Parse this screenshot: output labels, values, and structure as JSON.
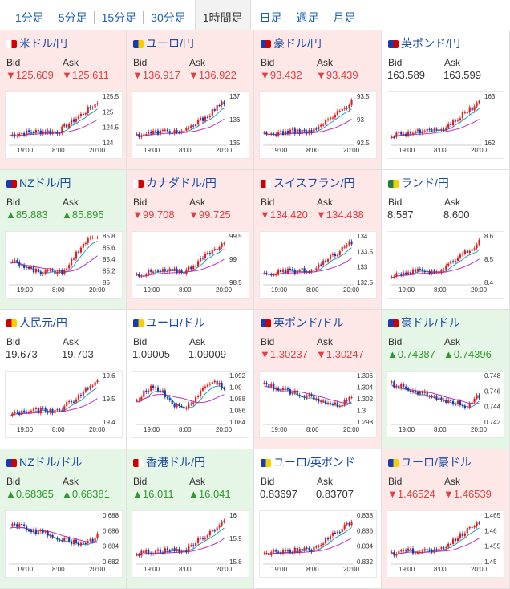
{
  "tabs": [
    "1分足",
    "5分足",
    "15分足",
    "30分足",
    "1時間足",
    "日足",
    "週足",
    "月足"
  ],
  "active_tab": "1時間足",
  "labels": {
    "bid": "Bid",
    "ask": "Ask"
  },
  "colors": {
    "down_bg": "#fde7e7",
    "up_bg": "#e6f6e6",
    "candle_up": "#e02020",
    "candle_down": "#1a3ab0",
    "ma1": "#1fa0c0",
    "ma2": "#c030c0"
  },
  "time_labels": [
    "19:00",
    "8:00",
    "20:00"
  ],
  "pairs": [
    {
      "name": "米ドル/円",
      "dir": "down",
      "bid": "▼125.609",
      "ask": "▼125.611",
      "ticks": [
        "125.5",
        "125",
        "124.5",
        "124"
      ],
      "trend": "up",
      "flag": "jp"
    },
    {
      "name": "ユーロ/円",
      "dir": "down",
      "bid": "▼136.917",
      "ask": "▼136.922",
      "ticks": [
        "137",
        "136",
        "135"
      ],
      "trend": "up",
      "flag": "eu"
    },
    {
      "name": "豪ドル/円",
      "dir": "down",
      "bid": "▼93.432",
      "ask": "▼93.439",
      "ticks": [
        "93.5",
        "93",
        "92.5"
      ],
      "trend": "up",
      "flag": "au"
    },
    {
      "name": "英ポンド/円",
      "dir": "flat",
      "bid": "163.589",
      "ask": "163.599",
      "ticks": [
        "163",
        "162"
      ],
      "trend": "up",
      "flag": "gb"
    },
    {
      "name": "NZドル/円",
      "dir": "up",
      "bid": "▲85.883",
      "ask": "▲85.895",
      "ticks": [
        "85.8",
        "85.6",
        "85.4",
        "85.2",
        "85"
      ],
      "trend": "dipup",
      "flag": "nz"
    },
    {
      "name": "カナダドル/円",
      "dir": "down",
      "bid": "▼99.708",
      "ask": "▼99.725",
      "ticks": [
        "99.5",
        "99",
        "98.5"
      ],
      "trend": "up",
      "flag": "ca"
    },
    {
      "name": "スイスフラン/円",
      "dir": "down",
      "bid": "▼134.420",
      "ask": "▼134.438",
      "ticks": [
        "134",
        "133.5",
        "133",
        "132.5"
      ],
      "trend": "up",
      "flag": "ch"
    },
    {
      "name": "ランド/円",
      "dir": "flat",
      "bid": "8.587",
      "ask": "8.600",
      "ticks": [
        "8.6",
        "8.5",
        "8.4"
      ],
      "trend": "up",
      "flag": "za"
    },
    {
      "name": "人民元/円",
      "dir": "flat",
      "bid": "19.673",
      "ask": "19.703",
      "ticks": [
        "19.6",
        "19.5",
        "19.4"
      ],
      "trend": "up",
      "flag": "cn"
    },
    {
      "name": "ユーロ/ドル",
      "dir": "flat",
      "bid": "1.09005",
      "ask": "1.09009",
      "ticks": [
        "1.092",
        "1.09",
        "1.088",
        "1.086",
        "1.084"
      ],
      "trend": "choppy",
      "flag": "eu"
    },
    {
      "name": "英ポンド/ドル",
      "dir": "down",
      "bid": "▼1.30237",
      "ask": "▼1.30247",
      "ticks": [
        "1.306",
        "1.304",
        "1.302",
        "1.3",
        "1.298"
      ],
      "trend": "down",
      "flag": "gb"
    },
    {
      "name": "豪ドル/ドル",
      "dir": "up",
      "bid": "▲0.74387",
      "ask": "▲0.74396",
      "ticks": [
        "0.748",
        "0.746",
        "0.744",
        "0.742"
      ],
      "trend": "down",
      "flag": "au"
    },
    {
      "name": "NZドル/ドル",
      "dir": "up",
      "bid": "▲0.68365",
      "ask": "▲0.68381",
      "ticks": [
        "0.688",
        "0.686",
        "0.684",
        "0.682"
      ],
      "trend": "down",
      "flag": "nz"
    },
    {
      "name": "香港ドル/円",
      "dir": "up",
      "bid": "▲16.011",
      "ask": "▲16.041",
      "ticks": [
        "16",
        "15.9",
        "15.8"
      ],
      "trend": "up",
      "flag": "hk"
    },
    {
      "name": "ユーロ/英ポンド",
      "dir": "flat",
      "bid": "0.83697",
      "ask": "0.83707",
      "ticks": [
        "0.838",
        "0.836",
        "0.834",
        "0.832"
      ],
      "trend": "up",
      "flag": "eu"
    },
    {
      "name": "ユーロ/豪ドル",
      "dir": "down",
      "bid": "▼1.46524",
      "ask": "▼1.46539",
      "ticks": [
        "1.465",
        "1.46",
        "1.455",
        "1.45"
      ],
      "trend": "up",
      "flag": "eu"
    }
  ]
}
